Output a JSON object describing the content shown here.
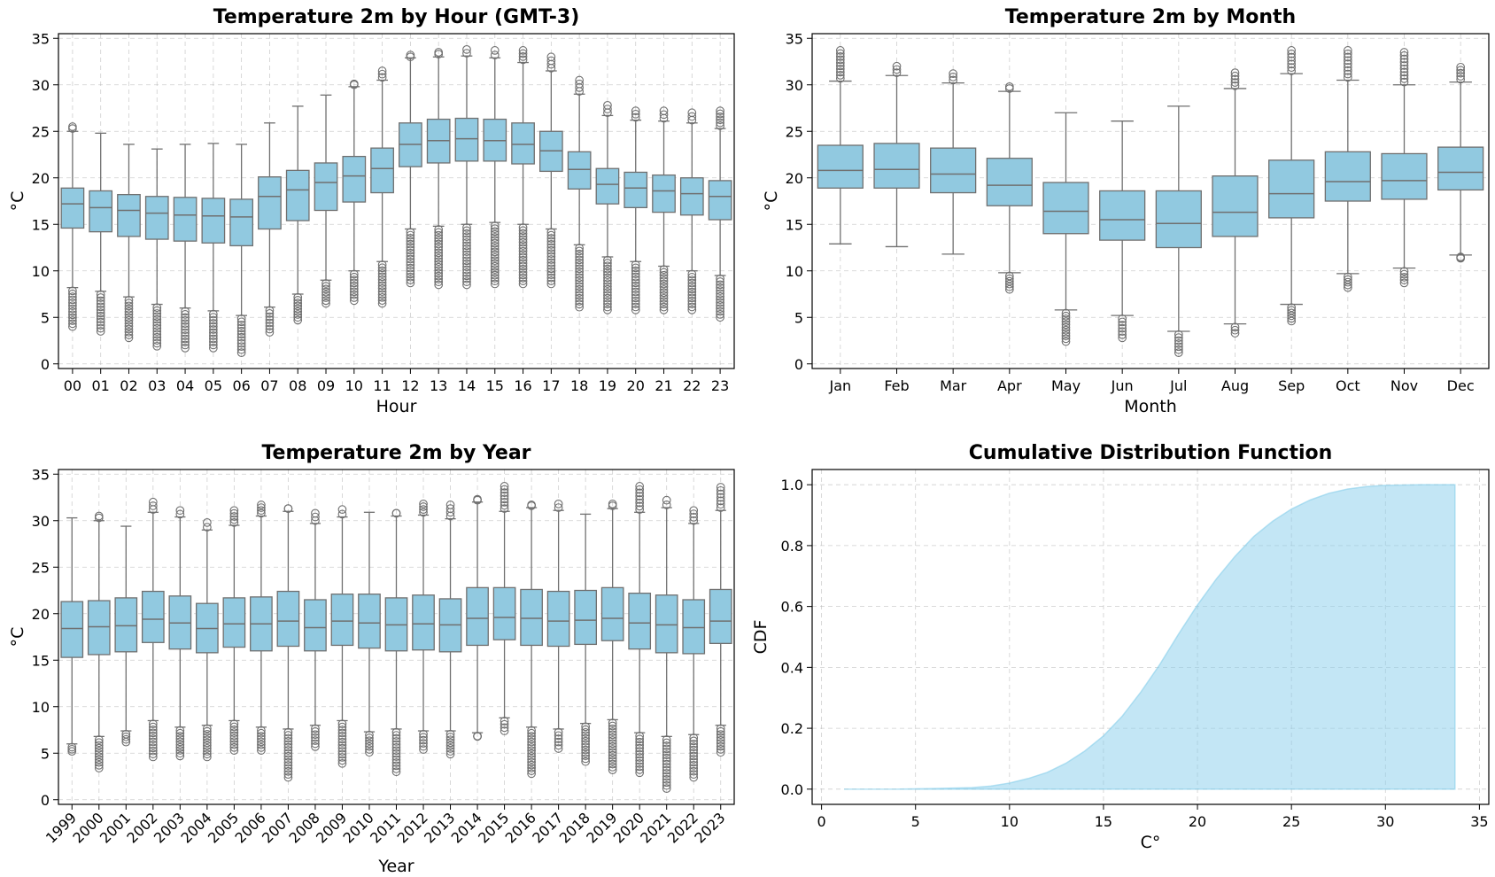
{
  "colors": {
    "box_fill": "#91C9E0",
    "box_edge": "#707070",
    "cdf_fill": "#87CEEB"
  },
  "chart_data": [
    {
      "type": "box",
      "title": "Temperature 2m by Hour (GMT-3)",
      "xlabel": "Hour",
      "ylabel": "°C",
      "ylim": [
        -0.5,
        35.5
      ],
      "yticks": [
        0,
        5,
        10,
        15,
        20,
        25,
        30,
        35
      ],
      "grid": true,
      "categories": [
        "00",
        "01",
        "02",
        "03",
        "04",
        "05",
        "06",
        "07",
        "08",
        "09",
        "10",
        "11",
        "12",
        "13",
        "14",
        "15",
        "16",
        "17",
        "18",
        "19",
        "20",
        "21",
        "22",
        "23"
      ],
      "q1": [
        14.6,
        14.2,
        13.7,
        13.4,
        13.2,
        13.0,
        12.7,
        14.5,
        15.4,
        16.5,
        17.4,
        18.4,
        21.2,
        21.6,
        21.8,
        21.8,
        21.5,
        20.7,
        18.8,
        17.2,
        16.8,
        16.3,
        16.0,
        15.5
      ],
      "median": [
        17.2,
        16.8,
        16.5,
        16.2,
        16.0,
        15.9,
        15.8,
        18.0,
        18.7,
        19.5,
        20.2,
        21.0,
        23.6,
        24.0,
        24.2,
        24.0,
        23.6,
        22.9,
        20.9,
        19.3,
        18.9,
        18.6,
        18.3,
        18.0
      ],
      "q3": [
        18.9,
        18.6,
        18.2,
        18.0,
        17.9,
        17.8,
        17.7,
        20.1,
        20.8,
        21.6,
        22.3,
        23.2,
        25.9,
        26.3,
        26.4,
        26.3,
        25.9,
        25.0,
        22.8,
        21.0,
        20.6,
        20.3,
        20.0,
        19.7
      ],
      "whisker_low": [
        8.2,
        7.8,
        7.2,
        6.4,
        6.0,
        5.7,
        5.2,
        6.1,
        7.5,
        9.0,
        10.0,
        11.0,
        14.5,
        14.8,
        15.0,
        15.2,
        15.0,
        14.5,
        12.8,
        11.5,
        11.0,
        10.5,
        10.0,
        9.5
      ],
      "whisker_high": [
        25.0,
        24.8,
        23.6,
        23.1,
        23.6,
        23.7,
        23.6,
        25.9,
        27.7,
        28.9,
        29.8,
        30.5,
        32.9,
        33.0,
        33.1,
        32.9,
        32.4,
        31.5,
        29.0,
        26.7,
        26.2,
        26.1,
        25.9,
        25.3
      ],
      "outlier_low_min": [
        4.0,
        3.5,
        2.8,
        1.9,
        1.7,
        1.7,
        1.2,
        3.4,
        4.7,
        6.5,
        6.8,
        6.5,
        8.7,
        8.5,
        8.5,
        8.6,
        8.6,
        8.6,
        6.1,
        5.8,
        5.8,
        5.8,
        5.8,
        5.0
      ],
      "outlier_high_max": [
        25.5,
        null,
        null,
        null,
        null,
        null,
        null,
        null,
        null,
        null,
        30.0,
        31.5,
        33.0,
        33.5,
        33.8,
        33.7,
        33.7,
        33.0,
        30.5,
        27.8,
        27.2,
        27.2,
        27.0,
        27.2
      ]
    },
    {
      "type": "box",
      "title": "Temperature 2m by Month",
      "xlabel": "Month",
      "ylabel": "°C",
      "ylim": [
        -0.5,
        35.5
      ],
      "yticks": [
        0,
        5,
        10,
        15,
        20,
        25,
        30,
        35
      ],
      "grid": true,
      "categories": [
        "Jan",
        "Feb",
        "Mar",
        "Apr",
        "May",
        "Jun",
        "Jul",
        "Aug",
        "Sep",
        "Oct",
        "Nov",
        "Dec"
      ],
      "q1": [
        18.9,
        18.9,
        18.4,
        17.0,
        14.0,
        13.3,
        12.5,
        13.7,
        15.7,
        17.5,
        17.7,
        18.7
      ],
      "median": [
        20.8,
        20.9,
        20.4,
        19.2,
        16.4,
        15.5,
        15.1,
        16.3,
        18.3,
        19.6,
        19.7,
        20.6
      ],
      "q3": [
        23.5,
        23.7,
        23.2,
        22.1,
        19.5,
        18.6,
        18.6,
        20.2,
        21.9,
        22.8,
        22.6,
        23.3
      ],
      "whisker_low": [
        12.9,
        12.6,
        11.8,
        9.8,
        5.8,
        5.2,
        3.5,
        4.3,
        6.4,
        9.7,
        10.3,
        11.7
      ],
      "whisker_high": [
        30.4,
        31.0,
        30.2,
        29.3,
        27.0,
        26.1,
        27.7,
        29.6,
        31.2,
        30.5,
        30.0,
        30.3
      ],
      "outlier_low_min": [
        null,
        null,
        null,
        8.0,
        2.4,
        2.8,
        1.2,
        3.3,
        4.6,
        8.2,
        8.7,
        11.5
      ],
      "outlier_high_max": [
        33.7,
        32.0,
        31.2,
        29.8,
        null,
        null,
        null,
        31.3,
        33.7,
        33.7,
        33.5,
        31.9
      ]
    },
    {
      "type": "box",
      "title": "Temperature 2m by Year",
      "xlabel": "Year",
      "ylabel": "°C",
      "ylim": [
        -0.5,
        35.5
      ],
      "yticks": [
        0,
        5,
        10,
        15,
        20,
        25,
        30,
        35
      ],
      "grid": true,
      "categories": [
        "1999",
        "2000",
        "2001",
        "2002",
        "2003",
        "2004",
        "2005",
        "2006",
        "2007",
        "2008",
        "2009",
        "2010",
        "2011",
        "2012",
        "2013",
        "2014",
        "2015",
        "2016",
        "2017",
        "2018",
        "2019",
        "2020",
        "2021",
        "2022",
        "2023"
      ],
      "q1": [
        15.3,
        15.6,
        15.9,
        16.9,
        16.2,
        15.8,
        16.4,
        16.0,
        16.5,
        16.0,
        16.6,
        16.3,
        16.0,
        16.1,
        15.9,
        16.6,
        17.2,
        16.6,
        16.5,
        16.7,
        17.1,
        16.2,
        15.8,
        15.7,
        16.8
      ],
      "median": [
        18.4,
        18.6,
        18.7,
        19.4,
        19.0,
        18.4,
        18.9,
        18.9,
        19.2,
        18.5,
        19.2,
        19.0,
        18.8,
        18.9,
        18.8,
        19.5,
        19.6,
        19.5,
        19.2,
        19.3,
        19.5,
        19.0,
        18.8,
        18.5,
        19.2
      ],
      "q3": [
        21.3,
        21.4,
        21.7,
        22.4,
        21.9,
        21.1,
        21.7,
        21.8,
        22.4,
        21.5,
        22.1,
        22.1,
        21.7,
        22.0,
        21.6,
        22.8,
        22.8,
        22.6,
        22.4,
        22.5,
        22.8,
        22.2,
        22.0,
        21.5,
        22.6
      ],
      "whisker_low": [
        6.0,
        6.8,
        7.4,
        8.5,
        7.8,
        8.0,
        8.5,
        7.8,
        7.6,
        8.0,
        8.5,
        7.3,
        7.6,
        7.4,
        7.4,
        7.2,
        8.8,
        7.8,
        7.6,
        8.2,
        8.6,
        7.2,
        6.8,
        7.0,
        8.0
      ],
      "whisker_high": [
        30.3,
        30.0,
        29.4,
        30.9,
        30.4,
        29.0,
        29.5,
        30.5,
        31.0,
        29.7,
        30.4,
        30.9,
        30.5,
        30.6,
        30.2,
        32.0,
        31.0,
        31.4,
        31.1,
        30.7,
        31.3,
        30.9,
        31.4,
        29.7,
        31.1
      ],
      "outlier_low_min": [
        5.2,
        3.4,
        6.2,
        4.6,
        4.7,
        4.6,
        5.3,
        5.3,
        2.4,
        5.7,
        3.9,
        5.1,
        3.0,
        5.4,
        4.9,
        6.8,
        7.4,
        2.8,
        5.5,
        4.1,
        3.2,
        2.9,
        1.2,
        2.4,
        5.1
      ],
      "outlier_high_max": [
        null,
        30.5,
        null,
        32.0,
        31.1,
        29.8,
        31.1,
        31.7,
        31.3,
        30.8,
        31.2,
        null,
        30.8,
        31.8,
        31.7,
        32.2,
        33.7,
        31.6,
        31.8,
        null,
        31.8,
        33.7,
        32.2,
        31.1,
        33.6
      ]
    },
    {
      "type": "area",
      "title": "Cumulative Distribution Function",
      "xlabel": "C°",
      "ylabel": "CDF",
      "xlim": [
        -0.5,
        35.5
      ],
      "ylim": [
        -0.05,
        1.05
      ],
      "xticks": [
        0,
        5,
        10,
        15,
        20,
        25,
        30,
        35
      ],
      "yticks": [
        0.0,
        0.2,
        0.4,
        0.6,
        0.8,
        1.0
      ],
      "grid": true,
      "x": [
        1.2,
        4,
        6,
        8,
        9,
        10,
        11,
        12,
        13,
        14,
        15,
        16,
        17,
        18,
        19,
        20,
        21,
        22,
        23,
        24,
        25,
        26,
        27,
        28,
        29,
        30,
        31,
        32,
        33,
        33.7
      ],
      "y": [
        0.0,
        0.0,
        0.002,
        0.005,
        0.01,
        0.02,
        0.035,
        0.055,
        0.085,
        0.125,
        0.175,
        0.24,
        0.32,
        0.41,
        0.51,
        0.605,
        0.69,
        0.765,
        0.83,
        0.88,
        0.92,
        0.95,
        0.972,
        0.986,
        0.994,
        0.998,
        0.999,
        1.0,
        1.0,
        1.0
      ]
    }
  ]
}
